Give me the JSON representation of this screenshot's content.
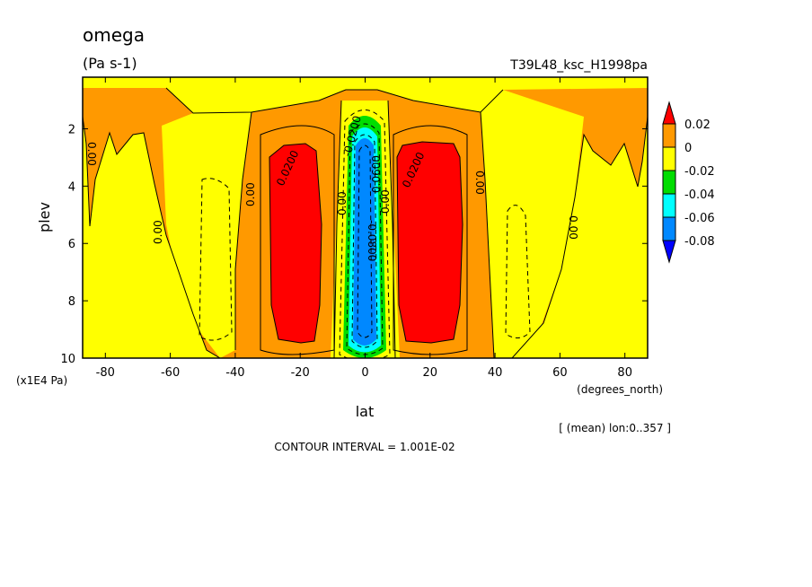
{
  "header": {
    "title": "omega",
    "units": "(Pa s-1)",
    "dataset": "T39L48_ksc_H1998pa"
  },
  "footer": {
    "mean_note": "[ (mean) lon:0..357 ]",
    "contour_interval": "CONTOUR INTERVAL = 1.001E-02"
  },
  "chart_data": {
    "type": "heatmap",
    "title": "omega",
    "xlabel": "lat",
    "xunits": "(degrees_north)",
    "ylabel": "plev",
    "yunits": "(x1E4 Pa)",
    "xlim": [
      -87,
      87
    ],
    "ylim": [
      10,
      0.2
    ],
    "y_inverted": true,
    "x_ticks": [
      "-80",
      "-60",
      "-40",
      "-20",
      "0",
      "20",
      "40",
      "60",
      "80"
    ],
    "x_tick_values": [
      -80,
      -60,
      -40,
      -20,
      0,
      20,
      40,
      60,
      80
    ],
    "y_ticks": [
      "2",
      "4",
      "6",
      "8",
      "10"
    ],
    "y_tick_values": [
      2,
      4,
      6,
      8,
      10
    ],
    "colorbar": {
      "labels": [
        "0.02",
        "0",
        "-0.02",
        "-0.04",
        "-0.06",
        "-0.08"
      ],
      "bins": [
        {
          "range": [
            0.02,
            null
          ],
          "color": "#ff0000"
        },
        {
          "range": [
            0,
            0.02
          ],
          "color": "#ff9900"
        },
        {
          "range": [
            -0.02,
            0
          ],
          "color": "#ffff00"
        },
        {
          "range": [
            -0.04,
            -0.02
          ],
          "color": "#00dd00"
        },
        {
          "range": [
            -0.06,
            -0.04
          ],
          "color": "#00ffff"
        },
        {
          "range": [
            -0.08,
            -0.06
          ],
          "color": "#0088ff"
        },
        {
          "range": [
            null,
            -0.08
          ],
          "color": "#0000ff"
        }
      ]
    },
    "contour_labels": [
      "0.00",
      "0.0200",
      "-0.0200",
      "-0.0800",
      "0.0600",
      "0.0400"
    ],
    "colors": {
      "red": "#ff0000",
      "orange": "#ff9900",
      "yellow": "#ffff00",
      "green": "#00dd00",
      "cyan": "#00ffff",
      "blue": "#0088ff",
      "deepblue": "#0000ff"
    }
  }
}
